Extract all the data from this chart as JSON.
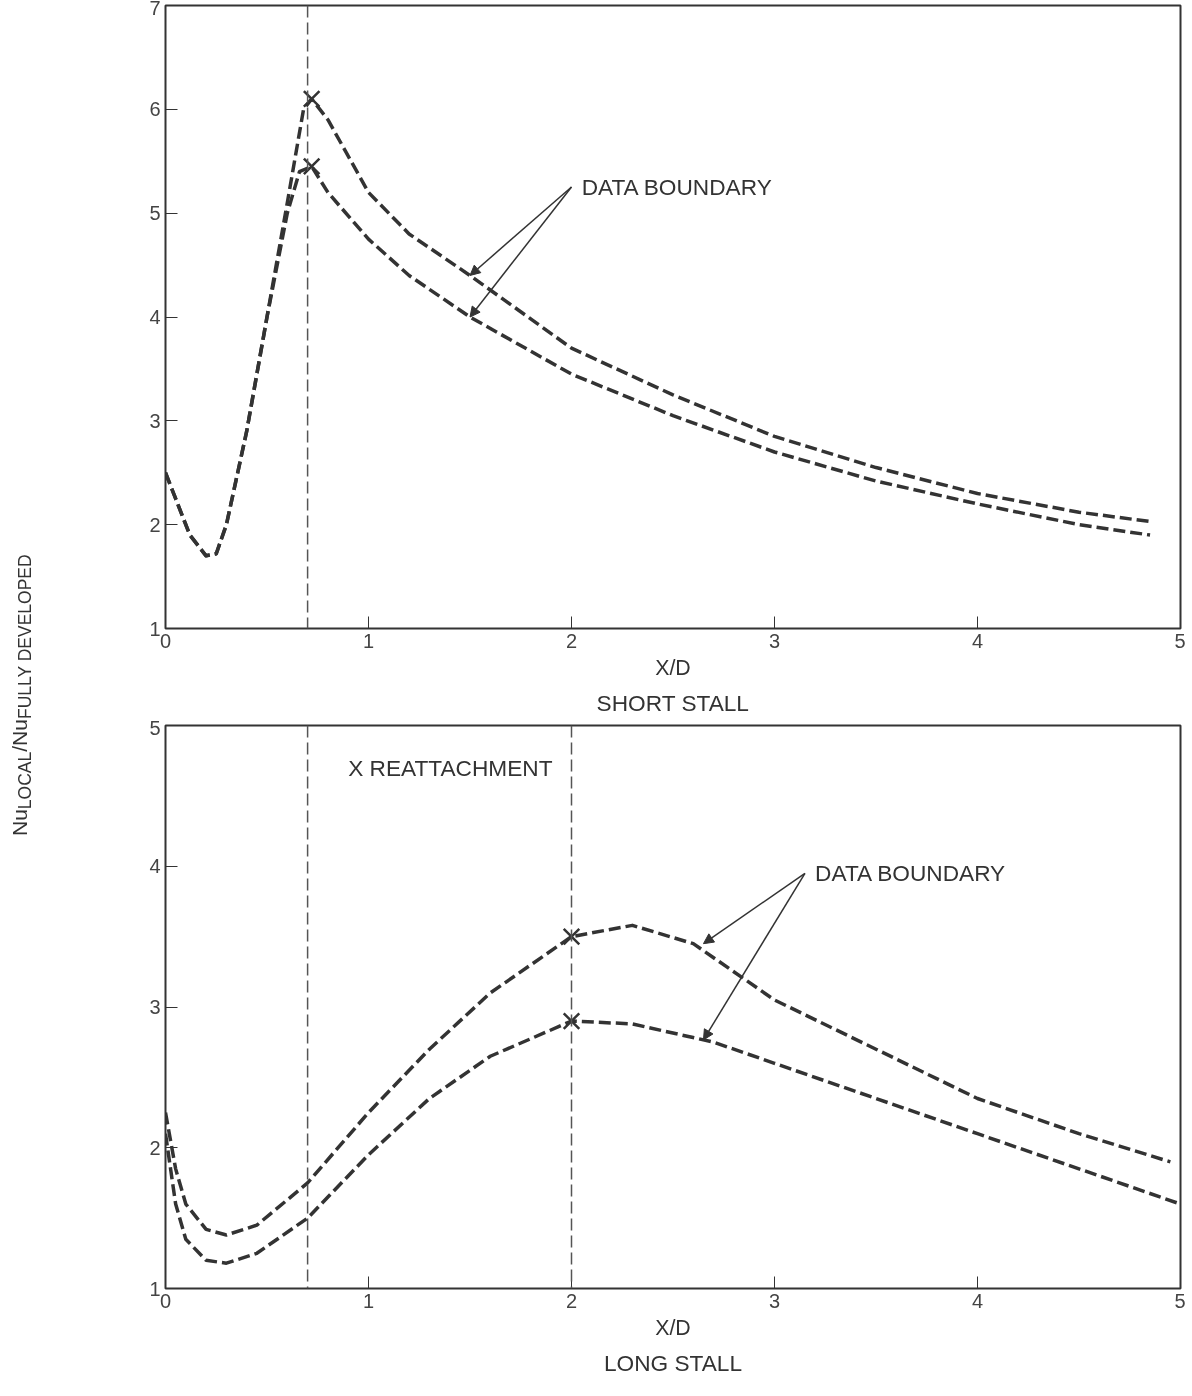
{
  "chart_data": [
    {
      "type": "line",
      "title": "SHORT STALL",
      "xlabel": "X/D",
      "ylabel": "Nu$_{LOCAL}$/Nu$_{FULLY DEVELOPED}$",
      "xlim": [
        0,
        5
      ],
      "ylim": [
        1,
        7
      ],
      "xticks": [
        0,
        1,
        2,
        3,
        4,
        5
      ],
      "yticks": [
        1,
        2,
        3,
        4,
        5,
        6,
        7
      ],
      "grid": false,
      "line_style": "dashed",
      "marker": "none",
      "series": [
        {
          "color": "#333333",
          "x": [
            0,
            0.05,
            0.12,
            0.2,
            0.25,
            0.3,
            0.4,
            0.5,
            0.6,
            0.68,
            0.72,
            0.8,
            1.0,
            1.2,
            1.5,
            2.0,
            2.5,
            3.0,
            3.5,
            4.0,
            4.5,
            4.85
          ],
          "values": [
            2.5,
            2.25,
            1.9,
            1.7,
            1.72,
            2.0,
            2.9,
            4.0,
            5.1,
            6.0,
            6.1,
            5.9,
            5.2,
            4.8,
            4.4,
            3.7,
            3.25,
            2.85,
            2.55,
            2.3,
            2.12,
            2.03
          ]
        },
        {
          "color": "#333333",
          "x": [
            0,
            0.05,
            0.12,
            0.2,
            0.25,
            0.3,
            0.4,
            0.5,
            0.6,
            0.66,
            0.72,
            0.8,
            1.0,
            1.2,
            1.5,
            2.0,
            2.5,
            3.0,
            3.5,
            4.0,
            4.5,
            4.85
          ],
          "values": [
            2.5,
            2.25,
            1.9,
            1.7,
            1.72,
            2.0,
            2.9,
            4.0,
            5.0,
            5.4,
            5.45,
            5.2,
            4.75,
            4.4,
            4.0,
            3.45,
            3.05,
            2.7,
            2.42,
            2.2,
            2.0,
            1.9
          ]
        },
        {
          "type": "scatter",
          "marker": "cross",
          "color": "#333333",
          "x": [
            0.72,
            0.72
          ],
          "values": [
            6.1,
            5.45
          ]
        }
      ],
      "ref_lines": [
        {
          "axis": "x",
          "value": 0.7,
          "color": "#555555",
          "line_style": "dashed"
        }
      ],
      "annotations": [
        {
          "text": "DATA BOUNDARY",
          "x": 1.5,
          "y": 4.4
        }
      ]
    },
    {
      "type": "line",
      "title": "LONG STALL",
      "xlabel": "X/D",
      "xlim": [
        0,
        5
      ],
      "ylim": [
        1,
        5
      ],
      "xticks": [
        0,
        1,
        2,
        3,
        4,
        5
      ],
      "yticks": [
        1,
        2,
        3,
        4,
        5
      ],
      "grid": false,
      "line_style": "dashed",
      "marker": "none",
      "series": [
        {
          "color": "#333333",
          "x": [
            0,
            0.05,
            0.1,
            0.2,
            0.3,
            0.45,
            0.7,
            1.0,
            1.3,
            1.6,
            2.0,
            2.3,
            2.6,
            3.0,
            3.5,
            4.0,
            4.5,
            4.95
          ],
          "values": [
            2.25,
            1.85,
            1.6,
            1.42,
            1.38,
            1.45,
            1.75,
            2.25,
            2.7,
            3.1,
            3.5,
            3.58,
            3.45,
            3.05,
            2.7,
            2.35,
            2.1,
            1.9
          ]
        },
        {
          "color": "#333333",
          "x": [
            0,
            0.05,
            0.1,
            0.2,
            0.3,
            0.45,
            0.7,
            1.0,
            1.3,
            1.6,
            2.0,
            2.3,
            2.7,
            3.0,
            3.5,
            4.0,
            4.5,
            5.0
          ],
          "values": [
            2.1,
            1.6,
            1.35,
            1.2,
            1.18,
            1.25,
            1.5,
            1.95,
            2.35,
            2.65,
            2.9,
            2.88,
            2.75,
            2.6,
            2.35,
            2.1,
            1.85,
            1.6
          ]
        },
        {
          "type": "scatter",
          "marker": "cross",
          "color": "#333333",
          "x": [
            2.0,
            2.0
          ],
          "values": [
            3.5,
            2.9
          ]
        }
      ],
      "ref_lines": [
        {
          "axis": "x",
          "value": 0.7,
          "color": "#555555",
          "line_style": "dashed"
        },
        {
          "axis": "x",
          "value": 2.0,
          "color": "#555555",
          "line_style": "dashed"
        }
      ],
      "annotations": [
        "X REATTACHMENT",
        {
          "text": "DATA BOUNDARY",
          "x": 2.65,
          "y": 3.45
        }
      ]
    }
  ]
}
